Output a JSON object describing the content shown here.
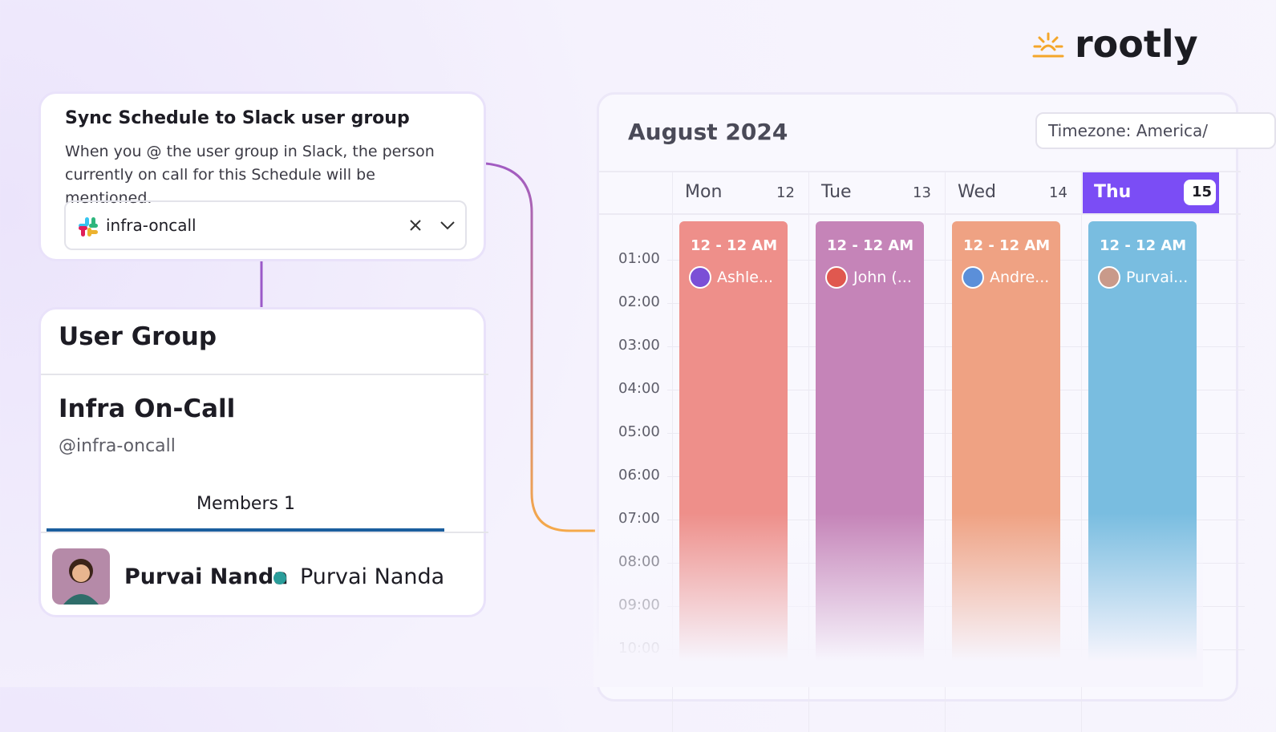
{
  "brand": "rootly",
  "slack_sync": {
    "title": "Sync Schedule to Slack user group",
    "description": "When you @ the user group in Slack, the person currently on call for this Schedule will be mentioned.",
    "selected_group": "infra-oncall"
  },
  "user_group": {
    "header": "User Group",
    "name": "Infra On-Call",
    "handle": "@infra-oncall",
    "tab_label": "Members",
    "member_count": 1,
    "members": [
      {
        "name": "Purvai Nanda",
        "display_name": "Purvai Nanda"
      }
    ]
  },
  "calendar": {
    "month": "August 2024",
    "timezone": "Timezone: America/",
    "days": [
      {
        "name": "Mon",
        "date": 12
      },
      {
        "name": "Tue",
        "date": 13
      },
      {
        "name": "Wed",
        "date": 14
      },
      {
        "name": "Thu",
        "date": 15
      }
    ],
    "hours": [
      "01:00",
      "02:00",
      "03:00",
      "04:00",
      "05:00",
      "06:00",
      "07:00",
      "08:00",
      "09:00",
      "10:00"
    ],
    "shifts": [
      {
        "time": "12 - 12 AM",
        "person": "Ashle..."
      },
      {
        "time": "12 - 12 AM",
        "person": "John (..."
      },
      {
        "time": "12 - 12 AM",
        "person": "Andre..."
      },
      {
        "time": "12 - 12 AM",
        "person": "Purvai..."
      }
    ]
  }
}
